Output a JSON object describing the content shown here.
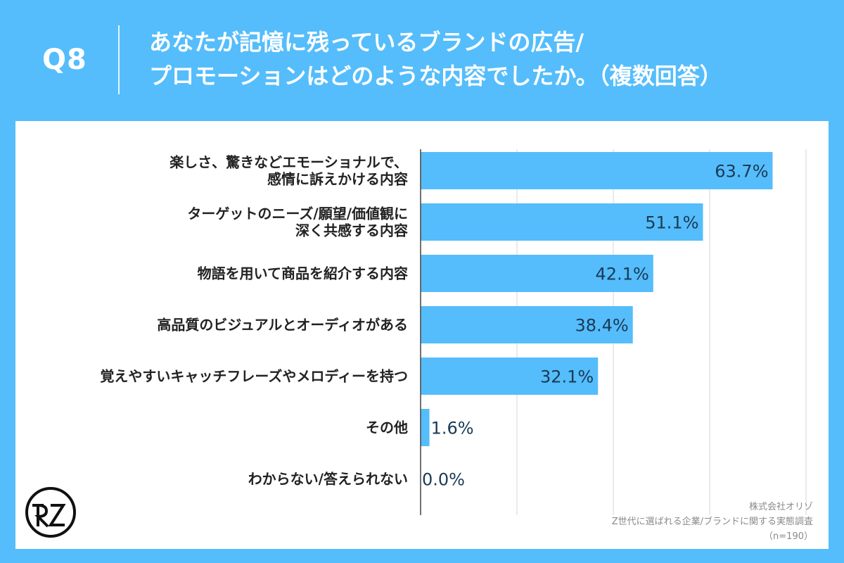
{
  "header": {
    "question_number": "Q8",
    "title_line1": "あなたが記憶に残っているブランドの広告/",
    "title_line2": "プロモーションはどのような内容でしたか。（複数回答）"
  },
  "chart_data": {
    "type": "bar",
    "orientation": "horizontal",
    "categories": [
      [
        "楽しさ、驚きなどエモーショナルで、",
        "感情に訴えかける内容"
      ],
      [
        "ターゲットのニーズ/願望/価値観に",
        "深く共感する内容"
      ],
      [
        "物語を用いて商品を紹介する内容"
      ],
      [
        "高品質のビジュアルとオーディオがある"
      ],
      [
        "覚えやすいキャッチフレーズやメロディーを持つ"
      ],
      [
        "その他"
      ],
      [
        "わからない/答えられない"
      ]
    ],
    "values": [
      63.7,
      51.1,
      42.1,
      38.4,
      32.1,
      1.6,
      0.0
    ],
    "value_labels": [
      "63.7%",
      "51.1%",
      "42.1%",
      "38.4%",
      "32.1%",
      "1.6%",
      "0.0%"
    ],
    "xlim": [
      0,
      70
    ],
    "grid": true,
    "bar_color": "#55bdfb"
  },
  "footer": {
    "company": "株式会社オリゾ",
    "survey": "Z世代に選ばれる企業/ブランドに関する実態調査",
    "sample": "（n=190）"
  },
  "logo": {
    "icon": "orizo-logo-icon"
  }
}
